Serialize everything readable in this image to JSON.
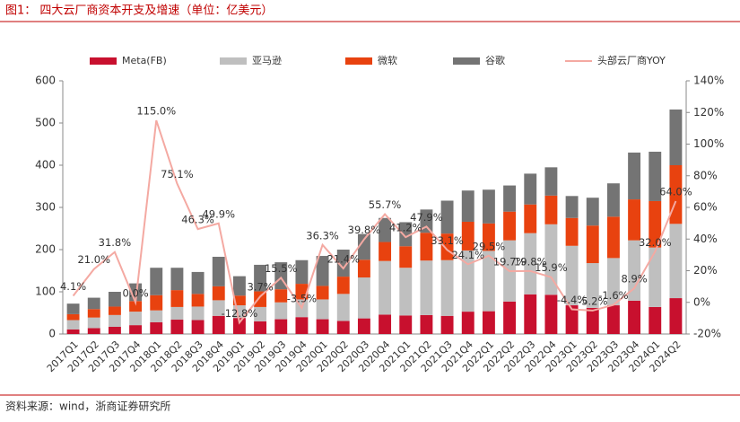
{
  "chart_data": {
    "type": "bar",
    "stacked": true,
    "title": "图1：  四大云厂商资本开支及增速（单位：亿美元）",
    "source": "资料来源：wind，浙商证券研究所",
    "categories": [
      "2017Q1",
      "2017Q2",
      "2017Q3",
      "2017Q4",
      "2018Q1",
      "2018Q2",
      "2018Q3",
      "2018Q4",
      "2019Q1",
      "2019Q2",
      "2019Q3",
      "2019Q4",
      "2020Q1",
      "2020Q2",
      "2020Q3",
      "2020Q4",
      "2021Q1",
      "2021Q2",
      "2021Q3",
      "2021Q4",
      "2022Q1",
      "2022Q2",
      "2022Q3",
      "2022Q4",
      "2023Q1",
      "2023Q2",
      "2023Q3",
      "2023Q4",
      "2024Q1",
      "2024Q2"
    ],
    "series": [
      {
        "name": "Meta(FB)",
        "color": "#c8102e",
        "values": [
          11,
          14,
          17,
          21,
          28,
          34,
          33,
          43,
          38,
          30,
          35,
          40,
          35,
          31,
          37,
          46,
          44,
          45,
          43,
          53,
          54,
          77,
          94,
          93,
          68,
          62,
          68,
          79,
          64,
          85
        ]
      },
      {
        "name": "亚马逊",
        "color": "#bfbfbf",
        "values": [
          22,
          25,
          28,
          32,
          28,
          30,
          32,
          37,
          30,
          34,
          40,
          42,
          47,
          64,
          97,
          127,
          113,
          129,
          132,
          145,
          143,
          145,
          145,
          167,
          141,
          106,
          112,
          143,
          141,
          176
        ]
      },
      {
        "name": "微软",
        "color": "#e8420f",
        "values": [
          14,
          20,
          20,
          25,
          36,
          40,
          30,
          33,
          23,
          37,
          31,
          37,
          32,
          41,
          42,
          45,
          51,
          66,
          63,
          68,
          65,
          68,
          68,
          68,
          66,
          89,
          98,
          97,
          110,
          139
        ]
      },
      {
        "name": "谷歌",
        "color": "#747474",
        "values": [
          25,
          27,
          35,
          42,
          65,
          53,
          52,
          70,
          46,
          63,
          64,
          56,
          71,
          64,
          61,
          57,
          57,
          55,
          78,
          74,
          80,
          62,
          73,
          67,
          52,
          66,
          79,
          111,
          117,
          132
        ]
      },
      {
        "name": "头部云厂商YOY",
        "type": "line",
        "axis": "y2",
        "color": "#f4a9a2",
        "values": [
          4.1,
          21.0,
          31.8,
          0.0,
          115.0,
          75.1,
          46.3,
          49.9,
          -12.8,
          3.7,
          15.5,
          -3.5,
          36.3,
          21.4,
          39.8,
          55.7,
          41.2,
          47.9,
          33.1,
          24.1,
          29.5,
          19.7,
          19.8,
          15.9,
          -4.4,
          -5.2,
          -1.6,
          8.9,
          32.0,
          64.0
        ],
        "value_labels": [
          "4.1%",
          "21.0%",
          "31.8%",
          "0.0%",
          "115.0%",
          "75.1%",
          "46.3%",
          "49.9%",
          "-12.8%",
          "3.7%",
          "15.5%",
          "-3.5%",
          "36.3%",
          "21.4%",
          "39.8%",
          "55.7%",
          "41.2%",
          "47.9%",
          "33.1%",
          "24.1%",
          "29.5%",
          "19.7%",
          "19.8%",
          "15.9%",
          "-4.4%",
          "-5.2%",
          "-1.6%",
          "8.9%",
          "32.0%",
          "64.0%"
        ]
      }
    ],
    "ylim": [
      0,
      600
    ],
    "yticks": [
      0,
      100,
      200,
      300,
      400,
      500,
      600
    ],
    "y2lim": [
      -20,
      140
    ],
    "y2ticks": [
      {
        "value": -20,
        "label": "-20%"
      },
      {
        "value": 0,
        "label": "0%"
      },
      {
        "value": 20,
        "label": "20%"
      },
      {
        "value": 40,
        "label": "40%"
      },
      {
        "value": 60,
        "label": "60%"
      },
      {
        "value": 80,
        "label": "80%"
      },
      {
        "value": 100,
        "label": "100%"
      },
      {
        "value": 120,
        "label": "120%"
      },
      {
        "value": 140,
        "label": "140%"
      }
    ],
    "legend": "top"
  }
}
